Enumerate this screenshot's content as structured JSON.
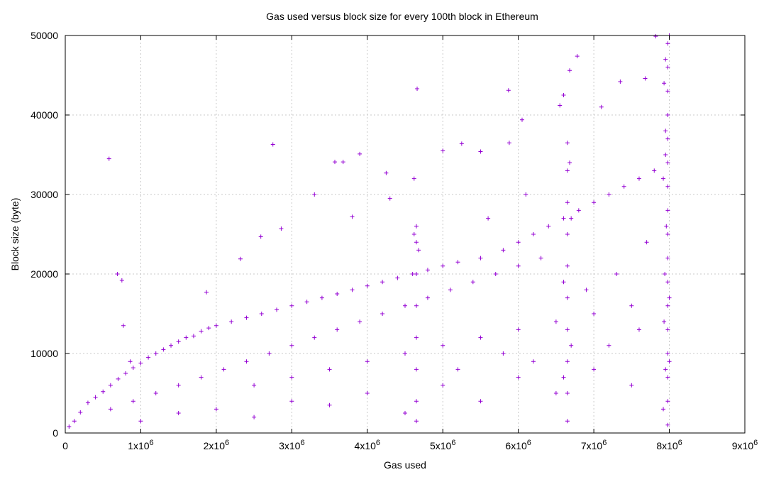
{
  "chart_data": {
    "type": "scatter",
    "title": "Gas used versus block size for every 100th block in Ethereum",
    "xlabel": "Gas used",
    "ylabel": "Block size (byte)",
    "xlim": [
      0,
      9000000
    ],
    "ylim": [
      0,
      50000
    ],
    "x_ticks": [
      {
        "value": 0,
        "base": "0",
        "exp": ""
      },
      {
        "value": 1000000,
        "base": "1x10",
        "exp": "6"
      },
      {
        "value": 2000000,
        "base": "2x10",
        "exp": "6"
      },
      {
        "value": 3000000,
        "base": "3x10",
        "exp": "6"
      },
      {
        "value": 4000000,
        "base": "4x10",
        "exp": "6"
      },
      {
        "value": 5000000,
        "base": "5x10",
        "exp": "6"
      },
      {
        "value": 6000000,
        "base": "6x10",
        "exp": "6"
      },
      {
        "value": 7000000,
        "base": "7x10",
        "exp": "6"
      },
      {
        "value": 8000000,
        "base": "8x10",
        "exp": "6"
      },
      {
        "value": 9000000,
        "base": "9x10",
        "exp": "6"
      }
    ],
    "y_ticks": [
      {
        "value": 0,
        "label": "0"
      },
      {
        "value": 10000,
        "label": "10000"
      },
      {
        "value": 20000,
        "label": "20000"
      },
      {
        "value": 30000,
        "label": "30000"
      },
      {
        "value": 40000,
        "label": "40000"
      },
      {
        "value": 50000,
        "label": "50000"
      }
    ],
    "grid": true,
    "marker": "+",
    "color": "#9400d3",
    "series": [
      {
        "points": [
          [
            50000,
            800
          ],
          [
            120000,
            1500
          ],
          [
            200000,
            2600
          ],
          [
            300000,
            3800
          ],
          [
            400000,
            4500
          ],
          [
            500000,
            5200
          ],
          [
            600000,
            6000
          ],
          [
            700000,
            6800
          ],
          [
            800000,
            7500
          ],
          [
            900000,
            8200
          ],
          [
            1000000,
            8800
          ],
          [
            1100000,
            9500
          ],
          [
            1200000,
            10000
          ],
          [
            1300000,
            10500
          ],
          [
            1400000,
            11000
          ],
          [
            1500000,
            11500
          ],
          [
            1600000,
            12000
          ],
          [
            1700000,
            12200
          ],
          [
            1800000,
            12800
          ],
          [
            1900000,
            13200
          ],
          [
            2000000,
            13500
          ],
          [
            2200000,
            14000
          ],
          [
            2400000,
            14500
          ],
          [
            2600000,
            15000
          ],
          [
            2800000,
            15500
          ],
          [
            3000000,
            16000
          ],
          [
            3200000,
            16500
          ],
          [
            3400000,
            17000
          ],
          [
            3600000,
            17500
          ],
          [
            3800000,
            18000
          ],
          [
            4000000,
            18500
          ],
          [
            4200000,
            19000
          ],
          [
            4400000,
            19500
          ],
          [
            4600000,
            20000
          ],
          [
            4800000,
            20500
          ],
          [
            5000000,
            21000
          ],
          [
            5200000,
            21500
          ],
          [
            5500000,
            22000
          ],
          [
            5800000,
            23000
          ],
          [
            6000000,
            24000
          ],
          [
            6200000,
            25000
          ],
          [
            6400000,
            26000
          ],
          [
            6600000,
            27000
          ],
          [
            6800000,
            28000
          ],
          [
            7000000,
            29000
          ],
          [
            7200000,
            30000
          ],
          [
            7400000,
            31000
          ],
          [
            7600000,
            32000
          ],
          [
            7800000,
            33000
          ],
          [
            7950000,
            35000
          ],
          [
            600000,
            3000
          ],
          [
            900000,
            4000
          ],
          [
            1200000,
            5000
          ],
          [
            1500000,
            6000
          ],
          [
            1800000,
            7000
          ],
          [
            2100000,
            8000
          ],
          [
            2400000,
            9000
          ],
          [
            2700000,
            10000
          ],
          [
            3000000,
            11000
          ],
          [
            3300000,
            12000
          ],
          [
            3600000,
            13000
          ],
          [
            3900000,
            14000
          ],
          [
            4200000,
            15000
          ],
          [
            4500000,
            16000
          ],
          [
            4800000,
            17000
          ],
          [
            5100000,
            18000
          ],
          [
            5400000,
            19000
          ],
          [
            5700000,
            20000
          ],
          [
            6000000,
            21000
          ],
          [
            6300000,
            22000
          ],
          [
            1000000,
            1500
          ],
          [
            1500000,
            2500
          ],
          [
            2000000,
            3000
          ],
          [
            2500000,
            2000
          ],
          [
            3000000,
            4000
          ],
          [
            3500000,
            3500
          ],
          [
            4000000,
            5000
          ],
          [
            4500000,
            2500
          ],
          [
            5000000,
            6000
          ],
          [
            5500000,
            4000
          ],
          [
            6000000,
            7000
          ],
          [
            6500000,
            5000
          ],
          [
            7000000,
            8000
          ],
          [
            7500000,
            6000
          ],
          [
            8000000,
            9000
          ],
          [
            2500000,
            6000
          ],
          [
            3000000,
            7000
          ],
          [
            3500000,
            8000
          ],
          [
            4000000,
            9000
          ],
          [
            4500000,
            10000
          ],
          [
            5000000,
            11000
          ],
          [
            5500000,
            12000
          ],
          [
            6000000,
            13000
          ],
          [
            6500000,
            14000
          ],
          [
            7000000,
            15000
          ],
          [
            7500000,
            16000
          ],
          [
            8000000,
            17000
          ],
          [
            5200000,
            8000
          ],
          [
            5800000,
            10000
          ],
          [
            6200000,
            9000
          ],
          [
            7200000,
            11000
          ],
          [
            7600000,
            13000
          ],
          [
            7300000,
            20000
          ],
          [
            7700000,
            24000
          ],
          [
            6900000,
            18000
          ],
          [
            4650000,
            1500
          ],
          [
            4650000,
            4000
          ],
          [
            4650000,
            8000
          ],
          [
            4650000,
            12000
          ],
          [
            4650000,
            16000
          ],
          [
            4650000,
            20000
          ],
          [
            4650000,
            24000
          ],
          [
            4650000,
            26000
          ],
          [
            4620000,
            25000
          ],
          [
            4680000,
            23000
          ],
          [
            6650000,
            1500
          ],
          [
            6650000,
            5000
          ],
          [
            6650000,
            9000
          ],
          [
            6650000,
            13000
          ],
          [
            6650000,
            17000
          ],
          [
            6650000,
            21000
          ],
          [
            6650000,
            25000
          ],
          [
            6650000,
            29000
          ],
          [
            6650000,
            33000
          ],
          [
            6650000,
            36500
          ],
          [
            6600000,
            7000
          ],
          [
            6700000,
            11000
          ],
          [
            6600000,
            19000
          ],
          [
            6700000,
            27000
          ],
          [
            6680000,
            34000
          ],
          [
            7980000,
            1000
          ],
          [
            7980000,
            4000
          ],
          [
            7980000,
            7000
          ],
          [
            7980000,
            10000
          ],
          [
            7980000,
            13000
          ],
          [
            7980000,
            16000
          ],
          [
            7980000,
            19000
          ],
          [
            7980000,
            22000
          ],
          [
            7980000,
            25000
          ],
          [
            7980000,
            28000
          ],
          [
            7980000,
            31000
          ],
          [
            7980000,
            34000
          ],
          [
            7980000,
            37000
          ],
          [
            7980000,
            40000
          ],
          [
            7980000,
            43000
          ],
          [
            7980000,
            46000
          ],
          [
            7980000,
            49000
          ],
          [
            8000000,
            50000
          ],
          [
            7950000,
            47000
          ],
          [
            7930000,
            44000
          ],
          [
            7950000,
            38000
          ],
          [
            7920000,
            32000
          ],
          [
            7960000,
            26000
          ],
          [
            7940000,
            20000
          ],
          [
            7930000,
            14000
          ],
          [
            7950000,
            8000
          ],
          [
            7920000,
            3000
          ],
          [
            580000,
            34500
          ],
          [
            690000,
            20000
          ],
          [
            750000,
            19200
          ],
          [
            770000,
            13500
          ],
          [
            860000,
            9000
          ],
          [
            1870000,
            17700
          ],
          [
            2320000,
            21900
          ],
          [
            2590000,
            24700
          ],
          [
            2750000,
            36300
          ],
          [
            2860000,
            25700
          ],
          [
            3300000,
            30000
          ],
          [
            3570000,
            34100
          ],
          [
            3680000,
            34100
          ],
          [
            3900000,
            35100
          ],
          [
            4250000,
            32700
          ],
          [
            4660000,
            43300
          ],
          [
            4620000,
            32000
          ],
          [
            5000000,
            35500
          ],
          [
            5250000,
            36400
          ],
          [
            5500000,
            35400
          ],
          [
            5870000,
            43100
          ],
          [
            5880000,
            36500
          ],
          [
            6050000,
            39400
          ],
          [
            6600000,
            42500
          ],
          [
            6780000,
            47400
          ],
          [
            6680000,
            45600
          ],
          [
            6550000,
            41200
          ],
          [
            7820000,
            49900
          ],
          [
            7680000,
            44600
          ],
          [
            7350000,
            44200
          ],
          [
            7100000,
            41000
          ],
          [
            6100000,
            30000
          ],
          [
            5600000,
            27000
          ],
          [
            4300000,
            29500
          ],
          [
            3800000,
            27200
          ]
        ]
      }
    ]
  }
}
